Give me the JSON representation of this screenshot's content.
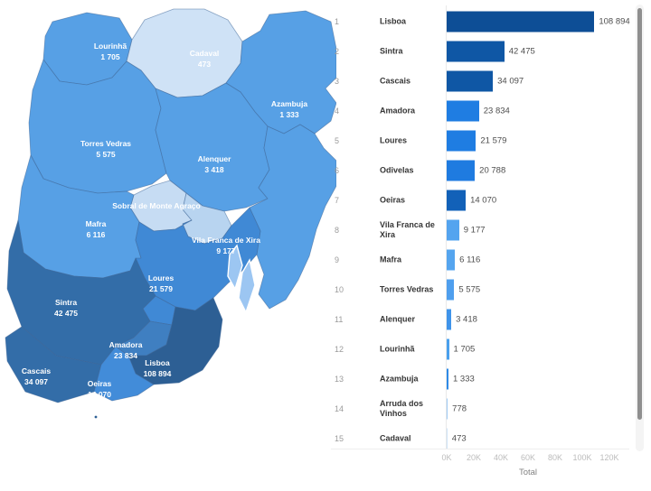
{
  "chart_data": {
    "type": "bar",
    "orientation": "horizontal",
    "xlabel": "Total",
    "x_ticks": [
      "0K",
      "20K",
      "40K",
      "60K",
      "80K",
      "100K",
      "120K"
    ],
    "xlim": [
      0,
      120000
    ],
    "grid": false,
    "rows": [
      {
        "rank": "1",
        "name": "Lisboa",
        "value": 108894,
        "value_label": "108 894",
        "bar_color": "#0d4e96"
      },
      {
        "rank": "2",
        "name": "Sintra",
        "value": 42475,
        "value_label": "42 475",
        "bar_color": "#0f57a5"
      },
      {
        "rank": "3",
        "name": "Cascais",
        "value": 34097,
        "value_label": "34 097",
        "bar_color": "#0f57a5"
      },
      {
        "rank": "4",
        "name": "Amadora",
        "value": 23834,
        "value_label": "23 834",
        "bar_color": "#1f7de2"
      },
      {
        "rank": "5",
        "name": "Loures",
        "value": 21579,
        "value_label": "21 579",
        "bar_color": "#1f7de2"
      },
      {
        "rank": "6",
        "name": "Odivelas",
        "value": 20788,
        "value_label": "20 788",
        "bar_color": "#1f7be0"
      },
      {
        "rank": "7",
        "name": "Oeiras",
        "value": 14070,
        "value_label": "14 070",
        "bar_color": "#1261b8"
      },
      {
        "rank": "8",
        "name": "Vila Franca de Xira",
        "value": 9177,
        "value_label": "9 177",
        "bar_color": "#54a4ef"
      },
      {
        "rank": "9",
        "name": "Mafra",
        "value": 6116,
        "value_label": "6 116",
        "bar_color": "#55a5ef"
      },
      {
        "rank": "10",
        "name": "Torres Vedras",
        "value": 5575,
        "value_label": "5 575",
        "bar_color": "#4f9fee"
      },
      {
        "rank": "11",
        "name": "Alenquer",
        "value": 3418,
        "value_label": "3 418",
        "bar_color": "#3f94ea"
      },
      {
        "rank": "12",
        "name": "Lourinhã",
        "value": 1705,
        "value_label": "1 705",
        "bar_color": "#4aa0ed"
      },
      {
        "rank": "13",
        "name": "Azambuja",
        "value": 1333,
        "value_label": "1 333",
        "bar_color": "#2e8ae7"
      },
      {
        "rank": "14",
        "name": "Arruda dos Vinhos",
        "value": 778,
        "value_label": "778",
        "bar_color": "#9fcbf5"
      },
      {
        "rank": "15",
        "name": "Cadaval",
        "value": 473,
        "value_label": "473",
        "bar_color": "#cfe4f8"
      }
    ]
  },
  "map": {
    "regions": [
      {
        "id": "lourinha",
        "name": "Lourinhã",
        "value_label": "1 705",
        "color": "#57a0e5",
        "show_label": true
      },
      {
        "id": "cadaval",
        "name": "Cadaval",
        "value_label": "473",
        "color": "#cfe2f6",
        "show_label": true
      },
      {
        "id": "azambuja",
        "name": "Azambuja",
        "value_label": "1 333",
        "color": "#57a0e5",
        "show_label": true
      },
      {
        "id": "torres_vedras",
        "name": "Torres Vedras",
        "value_label": "5 575",
        "color": "#57a0e5",
        "show_label": true
      },
      {
        "id": "alenquer",
        "name": "Alenquer",
        "value_label": "3 418",
        "color": "#57a0e5",
        "show_label": true
      },
      {
        "id": "sobral",
        "name": "Sobral de Monte Agraço",
        "value_label": "",
        "color": "#c6dcf3",
        "show_label": true
      },
      {
        "id": "arruda",
        "name": "Arruda dos Vinhos",
        "value_label": "",
        "color": "#b8d4f0",
        "show_label": false
      },
      {
        "id": "mafra",
        "name": "Mafra",
        "value_label": "6 116",
        "color": "#57a0e5",
        "show_label": true
      },
      {
        "id": "vfx",
        "name": "Vila Franca de Xira",
        "value_label": "9 177",
        "color": "#57a0e5",
        "show_label": true
      },
      {
        "id": "loures",
        "name": "Loures",
        "value_label": "21 579",
        "color": "#4089d5",
        "show_label": true
      },
      {
        "id": "odivelas",
        "name": "Odivelas",
        "value_label": "",
        "color": "#4089d5",
        "show_label": false
      },
      {
        "id": "sintra",
        "name": "Sintra",
        "value_label": "42 475",
        "color": "#336da8",
        "show_label": true
      },
      {
        "id": "amadora",
        "name": "Amadora",
        "value_label": "23 834",
        "color": "#3f7fc1",
        "show_label": true
      },
      {
        "id": "lisboa",
        "name": "Lisboa",
        "value_label": "108 894",
        "color": "#2d5f94",
        "show_label": true
      },
      {
        "id": "cascais",
        "name": "Cascais",
        "value_label": "34 097",
        "color": "#336da8",
        "show_label": true
      },
      {
        "id": "oeiras",
        "name": "Oeiras",
        "value_label": "14 070",
        "color": "#428cd9",
        "show_label": true
      }
    ],
    "island_color": "#9cc6f2",
    "border_color": "rgba(60,100,150,0.55)"
  },
  "ui": {
    "rank_color": "#9b9b9b",
    "name_color": "#363636",
    "value_color": "#4d4d4d",
    "tick_color": "#bcbcbc",
    "axis_label_color": "#828282",
    "scrollbar_track": "#f4f4f4",
    "scrollbar_thumb": "#8f8f8f",
    "background": "#ffffff"
  }
}
